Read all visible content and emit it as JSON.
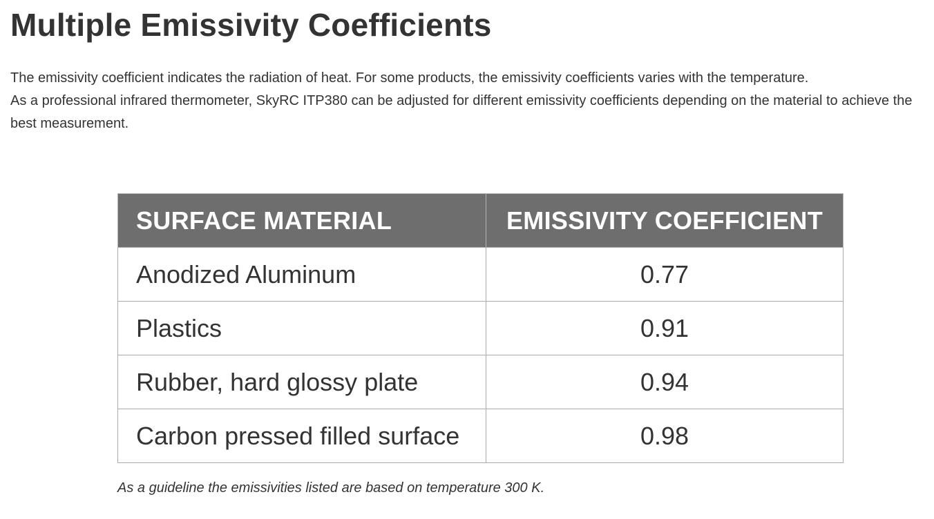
{
  "page": {
    "title": "Multiple Emissivity Coefficients",
    "intro_line1": "The emissivity coefficient indicates the radiation of heat. For some products, the emissivity coefficients varies with the temperature.",
    "intro_line2": "As a professional infrared thermometer, SkyRC ITP380 can be adjusted for different emissivity coefficients depending on the material to achieve the best measurement.",
    "footnote": "As a guideline the emissivities listed are based on temperature 300 K."
  },
  "table": {
    "headers": [
      "SURFACE MATERIAL",
      "EMISSIVITY COEFFICIENT"
    ],
    "rows": [
      {
        "material": "Anodized Aluminum",
        "coefficient": "0.77"
      },
      {
        "material": "Plastics",
        "coefficient": "0.91"
      },
      {
        "material": "Rubber, hard glossy plate",
        "coefficient": "0.94"
      },
      {
        "material": "Carbon pressed filled surface",
        "coefficient": "0.98"
      }
    ]
  },
  "colors": {
    "header_background": "#6f6e6e",
    "header_text": "#ffffff",
    "body_text": "#333333",
    "border": "#a9a9a9"
  }
}
